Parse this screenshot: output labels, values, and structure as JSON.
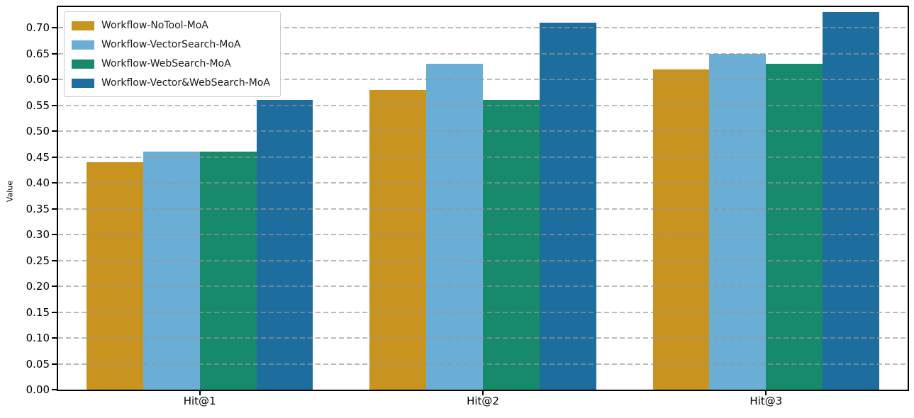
{
  "figure": {
    "background": "#ffffff",
    "spine_color": "#000000",
    "grid_color": "#969696"
  },
  "chart_data": {
    "type": "bar",
    "title": "",
    "xlabel": "",
    "ylabel": "Value",
    "categories": [
      "Hit@1",
      "Hit@2",
      "Hit@3"
    ],
    "series": [
      {
        "name": "Workflow-NoTool-MoA",
        "color": "#C8931E",
        "values": [
          0.44,
          0.58,
          0.62
        ]
      },
      {
        "name": "Workflow-VectorSearch-MoA",
        "color": "#6AAED6",
        "values": [
          0.46,
          0.63,
          0.65
        ]
      },
      {
        "name": "Workflow-WebSearch-MoA",
        "color": "#178A6B",
        "values": [
          0.46,
          0.56,
          0.63
        ]
      },
      {
        "name": "Workflow-Vector&WebSearch-MoA",
        "color": "#1D6D9E",
        "values": [
          0.56,
          0.71,
          0.73
        ]
      }
    ],
    "ylim": [
      0,
      0.74
    ],
    "yticks": [
      0.0,
      0.05,
      0.1,
      0.15,
      0.2,
      0.25,
      0.3,
      0.35,
      0.4,
      0.45,
      0.5,
      0.55,
      0.6,
      0.65,
      0.7
    ],
    "ytick_labels": [
      "0.00",
      "0.05",
      "0.10",
      "0.15",
      "0.20",
      "0.25",
      "0.30",
      "0.35",
      "0.40",
      "0.45",
      "0.50",
      "0.55",
      "0.60",
      "0.65",
      "0.70"
    ],
    "grid": "horizontal-dashed-over-bars",
    "legend_position": "upper-left",
    "bar_group_width_ratio": 0.8
  }
}
